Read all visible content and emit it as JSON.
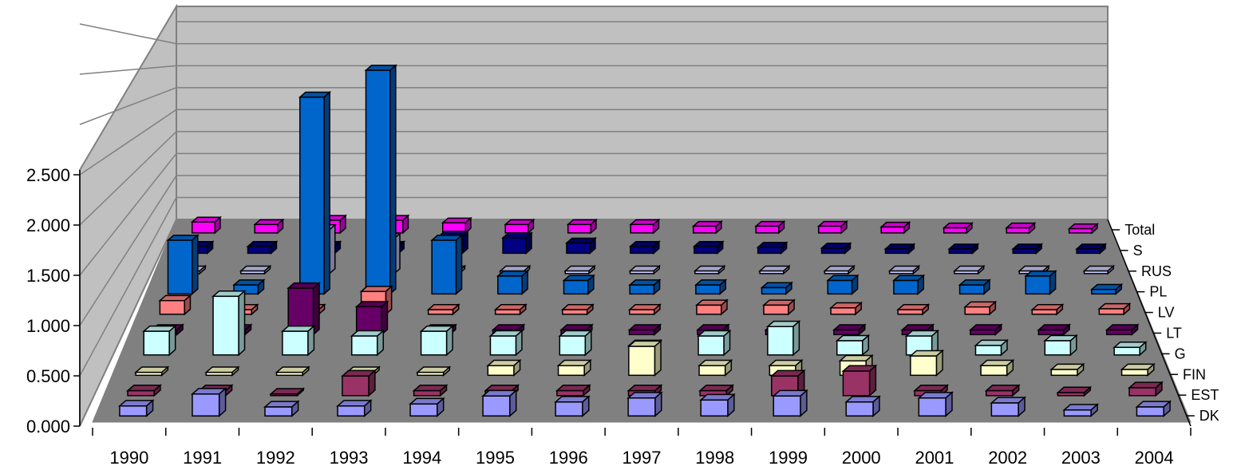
{
  "chart_data": {
    "type": "bar",
    "title": "",
    "xlabel": "",
    "ylabel": "",
    "ylim": [
      0,
      2.5
    ],
    "y_ticks": [
      "0.000",
      "0.500",
      "1.000",
      "1.500",
      "2.000",
      "2.500"
    ],
    "categories": [
      "1990",
      "1991",
      "1992",
      "1993",
      "1994",
      "1995",
      "1996",
      "1997",
      "1998",
      "1999",
      "2000",
      "2001",
      "2002",
      "2003",
      "2004"
    ],
    "series_labels": [
      "DK",
      "EST",
      "FIN",
      "G",
      "LT",
      "LV",
      "PL",
      "RUS",
      "S",
      "Total"
    ],
    "grid": true,
    "projection": "3d",
    "series": [
      {
        "name": "DK",
        "color": "#9999ff",
        "values": [
          0.1,
          0.22,
          0.09,
          0.1,
          0.12,
          0.2,
          0.14,
          0.18,
          0.16,
          0.2,
          0.14,
          0.18,
          0.13,
          0.06,
          0.09
        ]
      },
      {
        "name": "EST",
        "color": "#993366",
        "values": [
          0.05,
          0.05,
          0,
          0.2,
          0.05,
          0.05,
          0.05,
          0.05,
          0.05,
          0.2,
          0.25,
          0.05,
          0.05,
          0.03,
          0.08
        ]
      },
      {
        "name": "FIN",
        "color": "#ffffcc",
        "values": [
          0.03,
          0.03,
          0.03,
          0.03,
          0.03,
          0.1,
          0.1,
          0.3,
          0.1,
          0.1,
          0.15,
          0.2,
          0.1,
          0.06,
          0.06
        ]
      },
      {
        "name": "G",
        "color": "#ccffff",
        "values": [
          0.25,
          0.62,
          0.25,
          0.2,
          0.25,
          0.2,
          0.2,
          0.1,
          0.2,
          0.3,
          0.15,
          0.2,
          0.1,
          0.15,
          0.08
        ]
      },
      {
        "name": "LT",
        "color": "#660066",
        "values": [
          0.05,
          0.05,
          0.5,
          0.3,
          0.05,
          0.05,
          0.05,
          0.05,
          0.05,
          0.05,
          0.05,
          0.05,
          0.05,
          0.05,
          0.05
        ]
      },
      {
        "name": "LV",
        "color": "#ff8080",
        "values": [
          0.15,
          0.05,
          0.05,
          0.25,
          0.05,
          0.05,
          0.05,
          0.05,
          0.1,
          0.1,
          0.07,
          0.05,
          0.08,
          0.05,
          0.06
        ]
      },
      {
        "name": "PL",
        "color": "#0066cc",
        "values": [
          0.6,
          0.1,
          2.2,
          2.5,
          0.6,
          0.2,
          0.15,
          0.1,
          0.1,
          0.07,
          0.15,
          0.15,
          0.1,
          0.2,
          0.05
        ]
      },
      {
        "name": "RUS",
        "color": "#ccccff",
        "values": [
          0.03,
          0.03,
          0.5,
          0.4,
          0.03,
          0.03,
          0.03,
          0.03,
          0.03,
          0.03,
          0.03,
          0.03,
          0.03,
          0.03,
          0.03
        ]
      },
      {
        "name": "S",
        "color": "#000080",
        "values": [
          0.08,
          0.08,
          0.08,
          0.08,
          0.2,
          0.18,
          0.12,
          0.08,
          0.08,
          0.07,
          0.06,
          0.05,
          0.05,
          0.05,
          0.05
        ]
      },
      {
        "name": "Total",
        "color": "#ff00ff",
        "values": [
          0.13,
          0.1,
          0.15,
          0.15,
          0.12,
          0.1,
          0.1,
          0.1,
          0.08,
          0.08,
          0.08,
          0.07,
          0.06,
          0.06,
          0.05
        ]
      }
    ]
  }
}
